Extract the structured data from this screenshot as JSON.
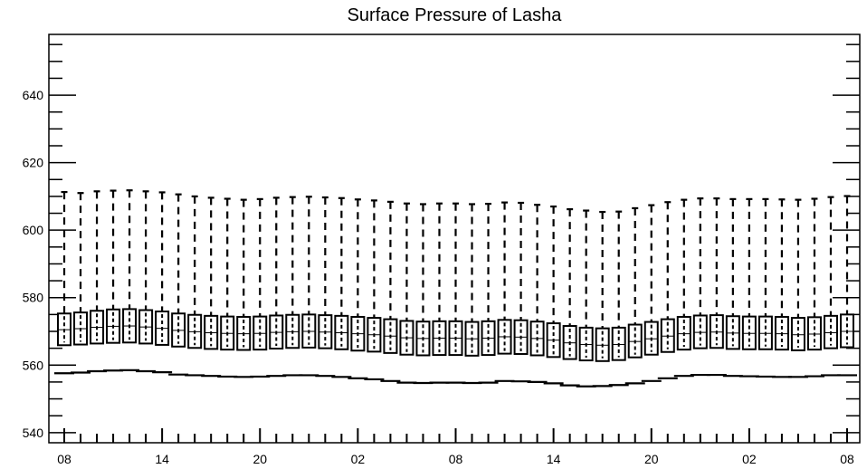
{
  "chart_data": {
    "type": "box",
    "title": "Surface Pressure of Lasha",
    "xlabel": "",
    "ylabel": "",
    "ylim": [
      537,
      658
    ],
    "yticks": [
      540,
      560,
      580,
      600,
      620,
      640
    ],
    "y_minor_step": 5,
    "x_ticks": [
      "08",
      "14",
      "20",
      "02",
      "08",
      "14",
      "20",
      "02",
      "08"
    ],
    "x_tick_positions": [
      0,
      6,
      12,
      18,
      24,
      30,
      36,
      42,
      48
    ],
    "grid": false,
    "colors": {
      "line": "#000000",
      "background": "#ffffff"
    },
    "series": [
      {
        "x": [
          0,
          1,
          2,
          3,
          4,
          5,
          6,
          7,
          8,
          9,
          10,
          11,
          12,
          13,
          14,
          15,
          16,
          17,
          18,
          19,
          20,
          21,
          22,
          23,
          24,
          25,
          26,
          27,
          28,
          29,
          30,
          31,
          32,
          33,
          34,
          35,
          36,
          37,
          38,
          39,
          40,
          41,
          42,
          43,
          44,
          45,
          46,
          47,
          48
        ],
        "whisker_high": [
          611.3,
          611.0,
          611.5,
          611.7,
          611.8,
          611.5,
          611.2,
          610.6,
          610.0,
          609.6,
          609.3,
          609.0,
          609.2,
          609.6,
          609.8,
          609.9,
          609.7,
          609.5,
          609.1,
          608.8,
          608.4,
          607.9,
          607.7,
          607.9,
          607.9,
          607.7,
          607.8,
          608.2,
          608.1,
          607.5,
          607.0,
          606.2,
          605.8,
          605.4,
          605.5,
          606.5,
          607.4,
          608.3,
          609.0,
          609.4,
          609.4,
          609.2,
          609.2,
          609.2,
          609.1,
          609.0,
          609.3,
          609.8,
          610.1
        ],
        "q3": [
          575.3,
          575.6,
          576.1,
          576.5,
          576.6,
          576.3,
          575.9,
          575.3,
          574.9,
          574.6,
          574.4,
          574.3,
          574.4,
          574.7,
          574.9,
          575.0,
          574.8,
          574.6,
          574.3,
          574.0,
          573.6,
          573.1,
          572.9,
          573.0,
          573.0,
          572.8,
          573.0,
          573.4,
          573.3,
          572.9,
          572.4,
          571.6,
          571.1,
          570.9,
          571.1,
          572.0,
          572.8,
          573.6,
          574.3,
          574.7,
          574.8,
          574.5,
          574.4,
          574.4,
          574.3,
          574.0,
          574.2,
          574.6,
          575.0
        ],
        "median": [
          570.5,
          570.8,
          571.2,
          571.5,
          571.6,
          571.3,
          570.9,
          570.3,
          569.9,
          569.6,
          569.4,
          569.3,
          569.4,
          569.7,
          569.9,
          570.0,
          569.8,
          569.6,
          569.3,
          569.0,
          568.6,
          568.1,
          567.9,
          568.0,
          568.0,
          567.8,
          568.0,
          568.4,
          568.3,
          567.9,
          567.4,
          566.6,
          566.1,
          565.9,
          566.1,
          567.0,
          567.8,
          568.6,
          569.3,
          569.7,
          569.8,
          569.5,
          569.4,
          569.4,
          569.3,
          569.0,
          569.2,
          569.6,
          570.0
        ],
        "q1": [
          565.9,
          566.1,
          566.4,
          566.6,
          566.7,
          566.4,
          566.0,
          565.5,
          565.1,
          564.8,
          564.6,
          564.5,
          564.6,
          564.9,
          565.1,
          565.2,
          565.0,
          564.7,
          564.3,
          564.0,
          563.6,
          563.1,
          562.9,
          563.0,
          563.0,
          562.8,
          563.0,
          563.4,
          563.3,
          562.9,
          562.4,
          561.8,
          561.4,
          561.2,
          561.5,
          562.3,
          563.1,
          563.9,
          564.6,
          565.0,
          565.1,
          564.8,
          564.7,
          564.7,
          564.6,
          564.4,
          564.6,
          565.0,
          565.3
        ],
        "whisker_low": [
          557.6,
          557.8,
          558.2,
          558.4,
          558.5,
          558.2,
          557.9,
          557.2,
          557.0,
          556.8,
          556.6,
          556.5,
          556.6,
          556.8,
          557.0,
          557.0,
          556.8,
          556.5,
          556.1,
          555.8,
          555.3,
          554.8,
          554.7,
          554.8,
          554.8,
          554.7,
          554.8,
          555.3,
          555.2,
          555.0,
          554.6,
          554.0,
          553.7,
          553.8,
          554.1,
          554.6,
          555.3,
          556.1,
          556.8,
          557.1,
          557.1,
          556.8,
          556.7,
          556.6,
          556.5,
          556.5,
          556.7,
          557.0,
          557.0
        ]
      }
    ]
  }
}
